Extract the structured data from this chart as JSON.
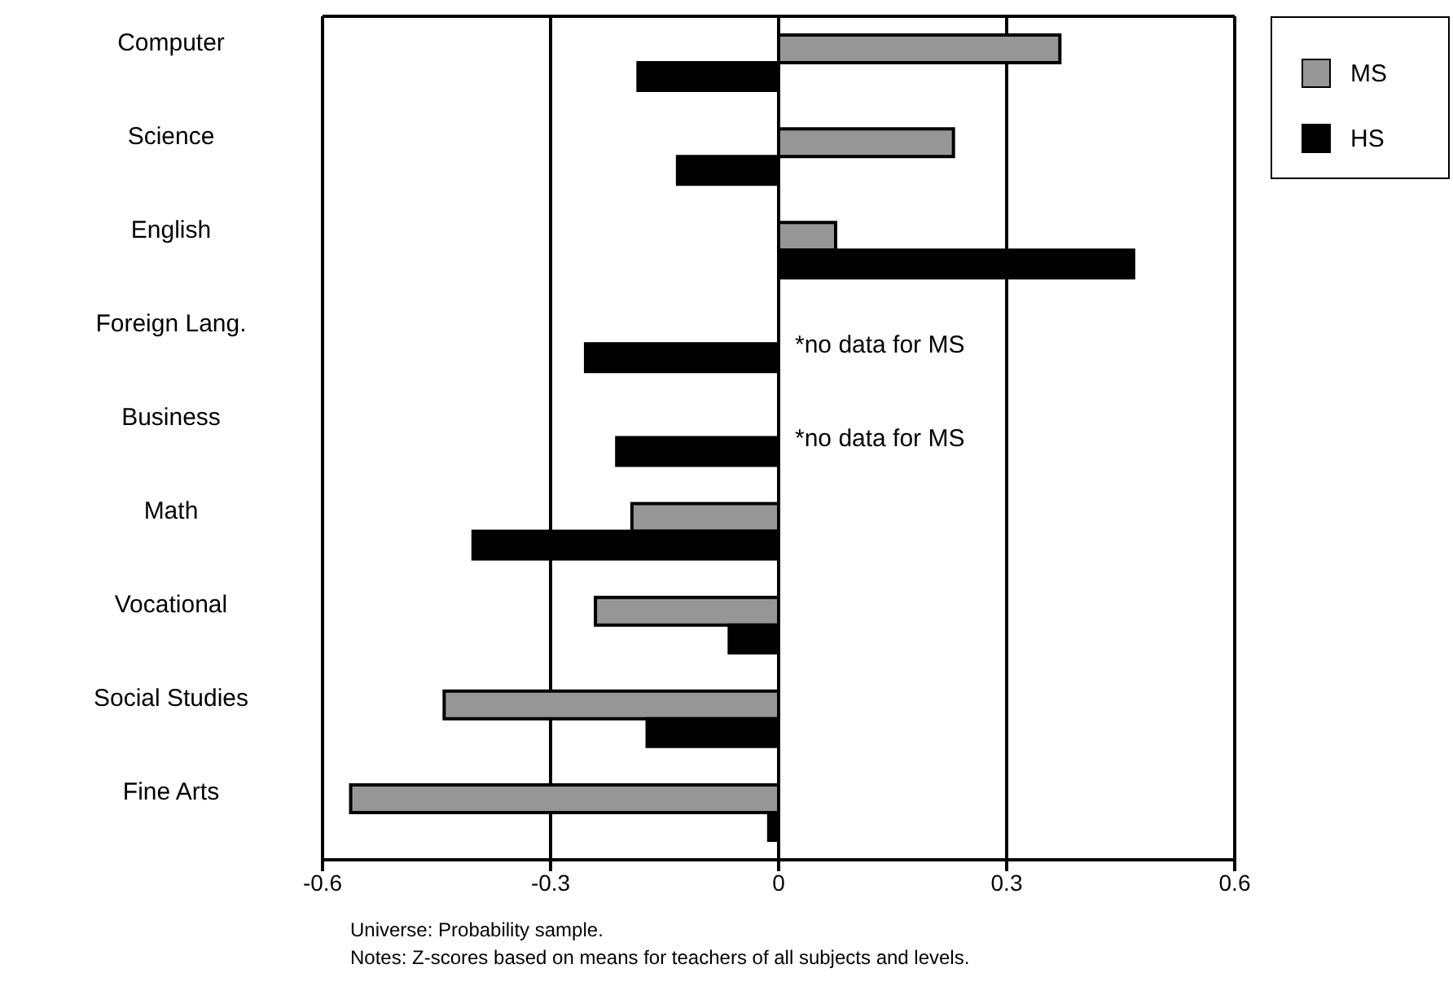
{
  "chart_data": {
    "type": "bar",
    "orientation": "horizontal",
    "categories": [
      "Computer",
      "Science",
      "English",
      "Foreign Lang.",
      "Business",
      "Math",
      "Vocational",
      "Social Studies",
      "Fine Arts"
    ],
    "series": [
      {
        "name": "MS",
        "color": "#969696",
        "values": [
          0.37,
          0.23,
          0.075,
          null,
          null,
          -0.193,
          -0.241,
          -0.44,
          -0.563
        ]
      },
      {
        "name": "HS",
        "color": "#000000",
        "values": [
          -0.185,
          -0.133,
          0.467,
          -0.254,
          -0.213,
          -0.402,
          -0.065,
          -0.173,
          -0.013
        ]
      }
    ],
    "xlim": [
      -0.6,
      0.6
    ],
    "xticks": [
      -0.6,
      -0.3,
      0,
      0.3,
      0.6
    ],
    "grid": "x",
    "legend": "top right",
    "annotations": [
      {
        "text": "*no data for MS",
        "x": 0,
        "y": "Foreign Lang."
      },
      {
        "text": "*no data for MS",
        "x": 0,
        "y": "Business"
      },
      "Universe:  Probability sample.",
      "Notes:  Z-scores based on means for teachers of all subjects and levels."
    ]
  }
}
